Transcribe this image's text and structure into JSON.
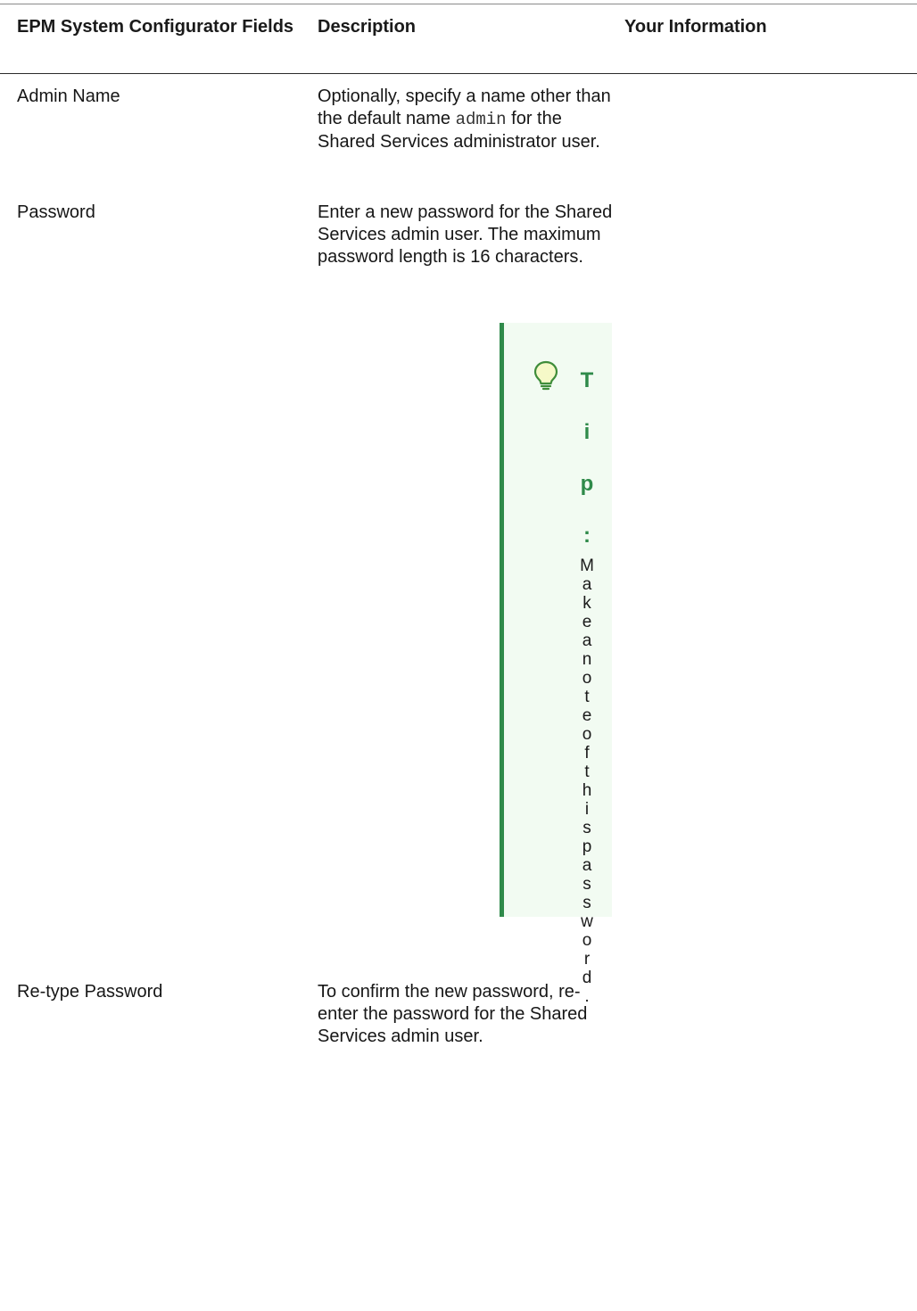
{
  "table": {
    "headers": {
      "fields": "EPM System Configurator Fields",
      "description": "Description",
      "your_info": "Your Information"
    },
    "rows": [
      {
        "field": "Admin Name",
        "desc_before": "Optionally, specify a name other than the default name",
        "desc_code": "admin",
        "desc_after": "for the Shared Services administrator user."
      },
      {
        "field": "Password",
        "description": "Enter a new password for the Shared Services admin user. The maximum password length is 16 characters."
      },
      {
        "field": "Re-type Password",
        "description": "To confirm the new password, re-enter the password for the Shared Services admin user."
      }
    ]
  },
  "tip": {
    "icon": "lightbulb-icon",
    "label": "Tip:",
    "text": "Make a note of this password.",
    "accent_color": "#2f8a4a",
    "background_color": "#f2fbf2"
  }
}
